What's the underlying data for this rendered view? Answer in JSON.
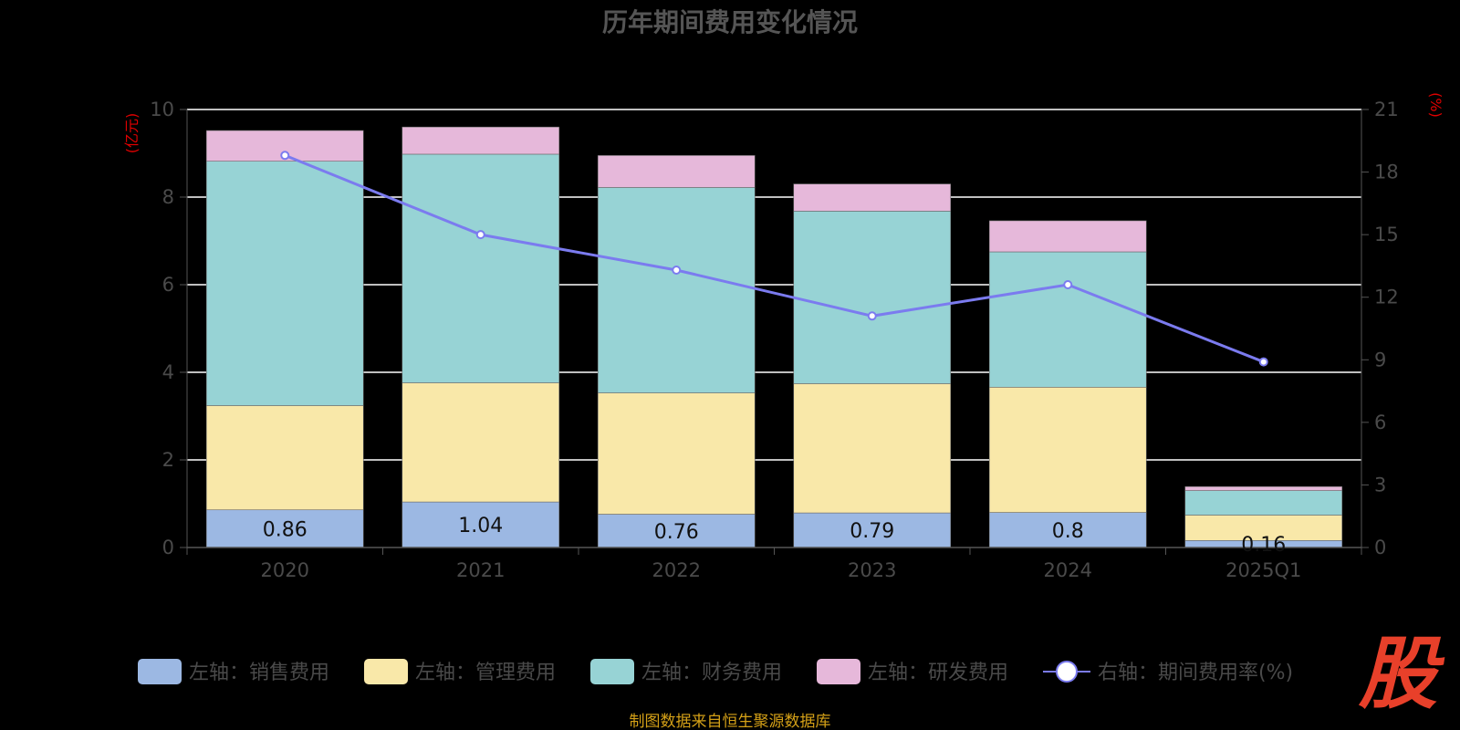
{
  "chart_data": {
    "type": "bar",
    "stacked": true,
    "title": "历年期间费用变化情况",
    "categories": [
      "2020",
      "2021",
      "2022",
      "2023",
      "2024",
      "2025Q1"
    ],
    "left_axis": {
      "unit": "(亿元)",
      "ylim": [
        0,
        10
      ],
      "ticks": [
        0,
        2,
        4,
        6,
        8,
        10
      ]
    },
    "right_axis": {
      "unit": "(%)",
      "ylim": [
        0,
        21
      ],
      "ticks": [
        0,
        3,
        6,
        9,
        12,
        15,
        18,
        21
      ]
    },
    "grid": true,
    "series": [
      {
        "name": "左轴：销售费用",
        "type": "bar",
        "axis": "left",
        "color": "#9cb8e3",
        "values": [
          0.86,
          1.04,
          0.76,
          0.79,
          0.8,
          0.16
        ],
        "labels": [
          "0.86",
          "1.04",
          "0.76",
          "0.79",
          "0.8",
          "0.16"
        ]
      },
      {
        "name": "左轴：管理费用",
        "type": "bar",
        "axis": "left",
        "color": "#f9e8a9",
        "values": [
          2.38,
          2.72,
          2.77,
          2.95,
          2.86,
          0.58
        ]
      },
      {
        "name": "左轴：财务费用",
        "type": "bar",
        "axis": "left",
        "color": "#97d3d5",
        "values": [
          5.58,
          5.22,
          4.69,
          3.94,
          3.09,
          0.56
        ]
      },
      {
        "name": "左轴：研发费用",
        "type": "bar",
        "axis": "left",
        "color": "#e6b8da",
        "values": [
          0.7,
          0.62,
          0.73,
          0.62,
          0.71,
          0.09
        ]
      },
      {
        "name": "右轴：期间费用率(%)",
        "type": "line",
        "axis": "right",
        "color": "#7b7bef",
        "values": [
          18.8,
          15.0,
          13.3,
          11.1,
          12.6,
          8.9
        ]
      }
    ],
    "legend_position": "bottom"
  },
  "source_note": "制图数据来自恒生聚源数据库",
  "logo_text": "股"
}
